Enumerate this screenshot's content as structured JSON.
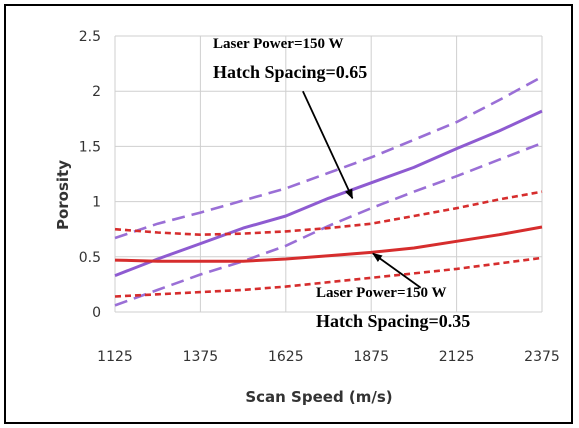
{
  "chart_data": {
    "type": "line",
    "xlabel": "Scan Speed (m/s)",
    "ylabel": "Porosity",
    "x_ticks": [
      "1125",
      "1375",
      "1625",
      "1875",
      "2125",
      "2375"
    ],
    "y_ticks": [
      "0",
      "0.5",
      "1",
      "1.5",
      "2",
      "2.5"
    ],
    "xlim": [
      1125,
      2375
    ],
    "ylim": [
      0,
      2.5
    ],
    "grid": true,
    "x": [
      1125,
      1250,
      1375,
      1500,
      1625,
      1750,
      1875,
      2000,
      2125,
      2250,
      2375
    ],
    "series": [
      {
        "group": "hatch-0.65",
        "role": "mean",
        "style": "solid",
        "color": "#8e5bd1",
        "values": [
          0.33,
          0.48,
          0.62,
          0.76,
          0.87,
          1.03,
          1.17,
          1.31,
          1.48,
          1.64,
          1.82
        ]
      },
      {
        "group": "hatch-0.65",
        "role": "upper",
        "style": "dashed",
        "color": "#9a6fd6",
        "values": [
          0.67,
          0.8,
          0.9,
          1.01,
          1.12,
          1.26,
          1.4,
          1.56,
          1.72,
          1.92,
          2.13
        ]
      },
      {
        "group": "hatch-0.65",
        "role": "lower",
        "style": "dashed",
        "color": "#9a6fd6",
        "values": [
          0.06,
          0.2,
          0.34,
          0.46,
          0.6,
          0.78,
          0.94,
          1.09,
          1.23,
          1.38,
          1.53
        ]
      },
      {
        "group": "hatch-0.35",
        "role": "mean",
        "style": "solid",
        "color": "#d62d2d",
        "values": [
          0.47,
          0.46,
          0.46,
          0.46,
          0.48,
          0.51,
          0.54,
          0.58,
          0.64,
          0.7,
          0.77
        ]
      },
      {
        "group": "hatch-0.35",
        "role": "upper",
        "style": "dotted",
        "color": "#d62d2d",
        "values": [
          0.75,
          0.72,
          0.7,
          0.71,
          0.73,
          0.76,
          0.8,
          0.87,
          0.94,
          1.02,
          1.09
        ]
      },
      {
        "group": "hatch-0.35",
        "role": "lower",
        "style": "dotted",
        "color": "#d62d2d",
        "values": [
          0.14,
          0.16,
          0.18,
          0.2,
          0.23,
          0.27,
          0.31,
          0.35,
          0.39,
          0.44,
          0.49
        ]
      }
    ],
    "annotations": [
      {
        "line1": "Laser Power=150 W",
        "line2": "Hatch Spacing=0.65",
        "arrow_to": [
          1820,
          1.03
        ],
        "arrow_from": [
          1675,
          2.0
        ]
      },
      {
        "line1": "Laser Power=150 W",
        "line2": "Hatch Spacing=0.35",
        "arrow_to": [
          1880,
          0.53
        ],
        "arrow_from": [
          2020,
          0.22
        ]
      }
    ]
  }
}
